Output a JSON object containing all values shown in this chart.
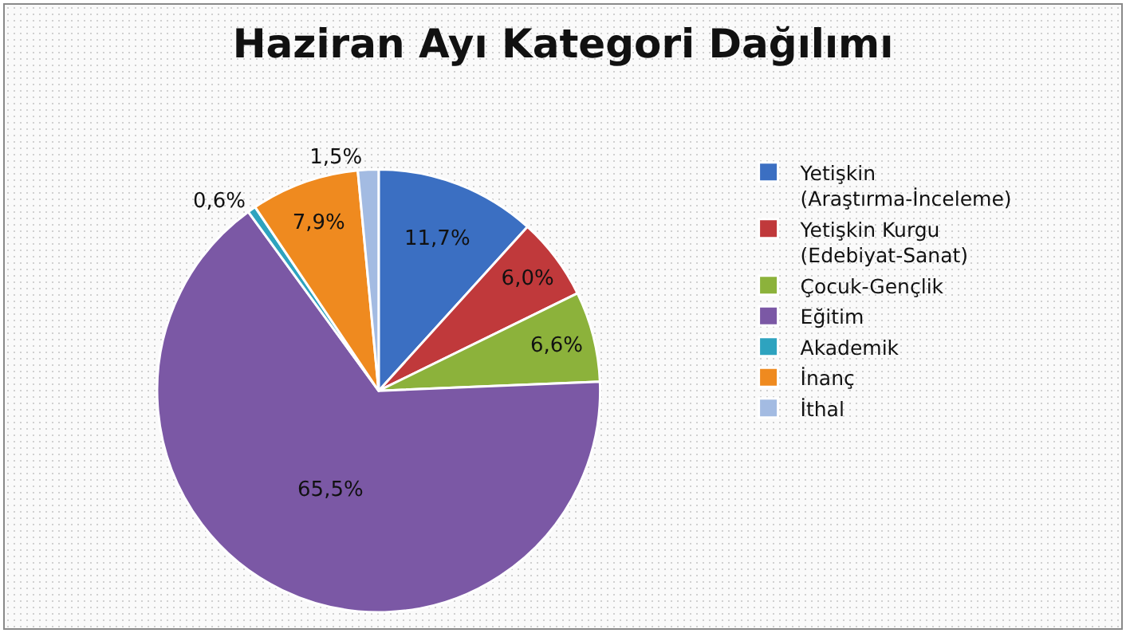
{
  "chart_data": {
    "type": "pie",
    "title": "Haziran Ayı Kategori Dağılımı",
    "categories": [
      "Yetişkin (Araştırma-İnceleme)",
      "Yetişkin Kurgu (Edebiyat-Sanat)",
      "Çocuk-Gençlik",
      "Eğitim",
      "Akademik",
      "İnanç",
      "İthal"
    ],
    "values": [
      11.7,
      6.0,
      6.6,
      65.5,
      0.6,
      7.9,
      1.5
    ],
    "value_labels": [
      "11,7%",
      "6,0%",
      "6,6%",
      "65,5%",
      "0,6%",
      "7,9%",
      "1,5%"
    ],
    "colors": [
      "#3b6fc2",
      "#c0393b",
      "#8cb23b",
      "#7b58a5",
      "#2ea3bf",
      "#ef8a1f",
      "#a3bbe2"
    ],
    "legend": "right"
  }
}
